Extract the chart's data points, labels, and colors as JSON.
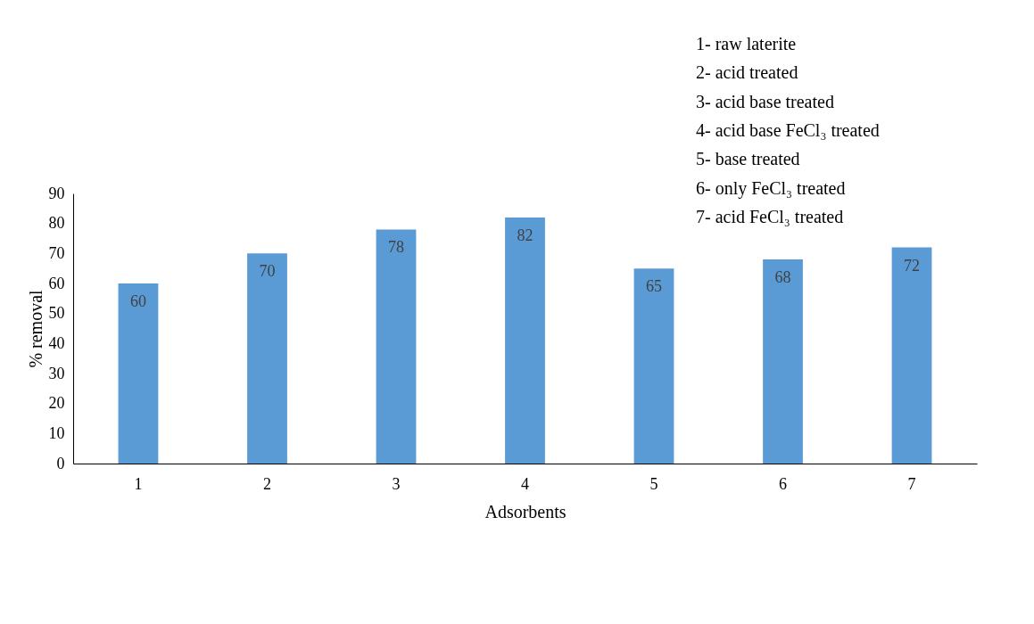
{
  "chart_data": {
    "type": "bar",
    "categories": [
      "1",
      "2",
      "3",
      "4",
      "5",
      "6",
      "7"
    ],
    "values": [
      60,
      70,
      78,
      82,
      65,
      68,
      72
    ],
    "color": "#5b9bd5",
    "xlabel": "Adsorbents",
    "ylabel": "% removal",
    "ylim": [
      0,
      90
    ],
    "yticks": [
      0,
      10,
      20,
      30,
      40,
      50,
      60,
      70,
      80,
      90
    ],
    "grid": false,
    "data_labels": true,
    "annotations": [
      "1- raw laterite",
      "2- acid treated",
      "3- acid base treated",
      "4- acid base FeCl₃ treated",
      "5- base treated",
      "6- only FeCl₃ treated",
      "7- acid FeCl₃ treated"
    ]
  }
}
